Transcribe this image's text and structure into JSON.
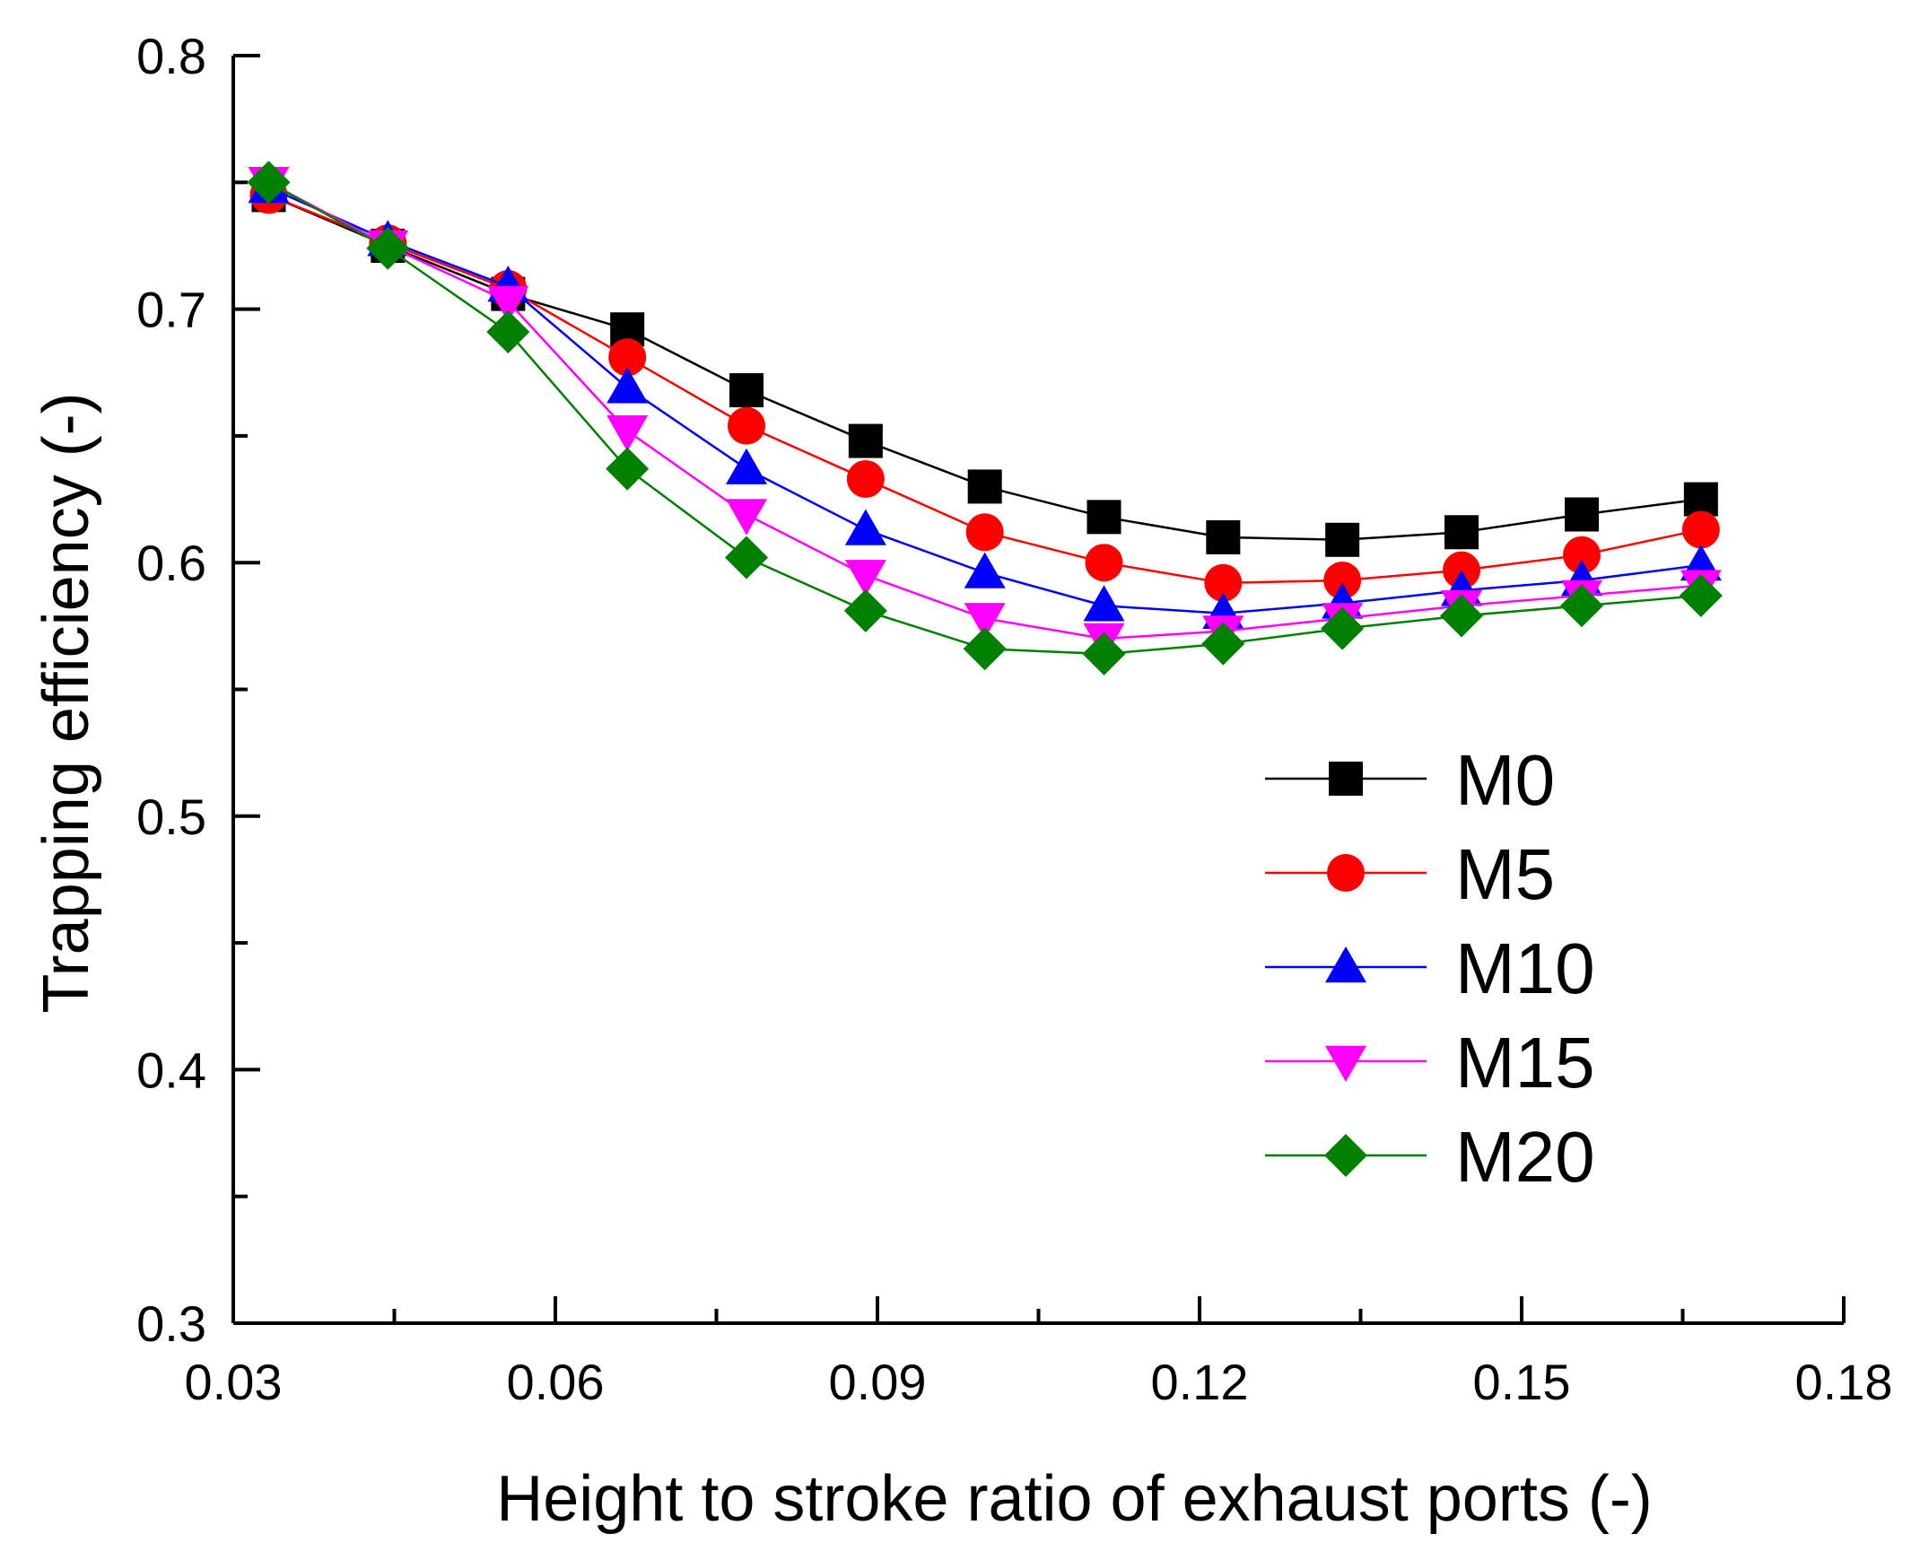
{
  "chart_data": {
    "type": "line",
    "title": "",
    "xlabel": "Height to stroke ratio of exhaust ports (-)",
    "ylabel": "Trapping efficiency (-)",
    "xlim": [
      0.03,
      0.18
    ],
    "ylim": [
      0.3,
      0.8
    ],
    "xticks": [
      0.03,
      0.06,
      0.09,
      0.12,
      0.15,
      0.18
    ],
    "xtick_labels": [
      "0.03",
      "0.06",
      "0.09",
      "0.12",
      "0.15",
      "0.18"
    ],
    "yticks": [
      0.3,
      0.4,
      0.5,
      0.6,
      0.7,
      0.8
    ],
    "ytick_labels": [
      "0.3",
      "0.4",
      "0.5",
      "0.6",
      "0.7",
      "0.8"
    ],
    "grid": false,
    "legend_position": "right-middle",
    "x": [
      0.0333,
      0.0444,
      0.0556,
      0.0667,
      0.0778,
      0.0889,
      0.1,
      0.1111,
      0.1222,
      0.1333,
      0.1444,
      0.1556,
      0.1667
    ],
    "series": [
      {
        "name": "M0",
        "marker": "square",
        "color": "#000000",
        "values": [
          0.745,
          0.725,
          0.706,
          0.692,
          0.668,
          0.648,
          0.63,
          0.618,
          0.61,
          0.609,
          0.612,
          0.619,
          0.625
        ]
      },
      {
        "name": "M5",
        "marker": "circle",
        "color": "#ff0000",
        "values": [
          0.745,
          0.726,
          0.708,
          0.681,
          0.654,
          0.633,
          0.612,
          0.6,
          0.592,
          0.593,
          0.597,
          0.603,
          0.613
        ]
      },
      {
        "name": "M10",
        "marker": "triangle-up",
        "color": "#0000ff",
        "values": [
          0.748,
          0.727,
          0.709,
          0.669,
          0.637,
          0.613,
          0.596,
          0.583,
          0.58,
          0.584,
          0.589,
          0.593,
          0.599
        ]
      },
      {
        "name": "M15",
        "marker": "triangle-down",
        "color": "#ff00ff",
        "values": [
          0.75,
          0.725,
          0.703,
          0.652,
          0.619,
          0.595,
          0.578,
          0.57,
          0.573,
          0.578,
          0.583,
          0.587,
          0.591
        ]
      },
      {
        "name": "M20",
        "marker": "diamond",
        "color": "#008000",
        "values": [
          0.75,
          0.724,
          0.691,
          0.637,
          0.602,
          0.581,
          0.566,
          0.564,
          0.568,
          0.574,
          0.579,
          0.583,
          0.587
        ]
      }
    ]
  }
}
